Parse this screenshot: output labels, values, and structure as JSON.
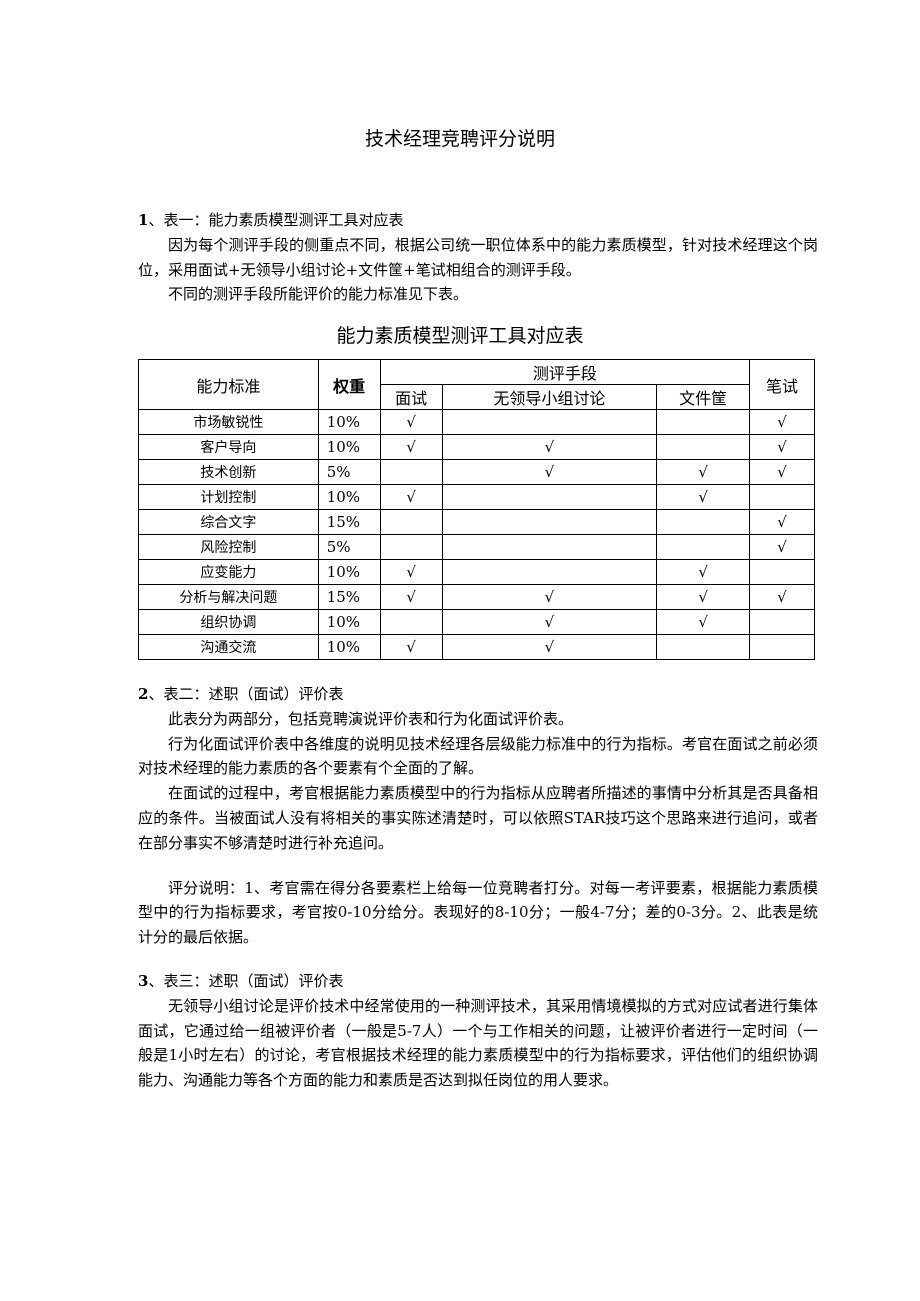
{
  "title": "技术经理竞聘评分说明",
  "s1": {
    "heading_num": "1",
    "heading": "、表一：能力素质模型测评工具对应表",
    "paras": [
      "因为每个测评手段的侧重点不同，根据公司统一职位体系中的能力素质模型，针对技术经理这个岗位，采用面试+无领导小组讨论+文件筐+笔试相组合的测评手段。",
      "不同的测评手段所能评价的能力标准见下表。"
    ]
  },
  "table": {
    "title": "能力素质模型测评工具对应表",
    "headers": {
      "ability": "能力标准",
      "weight": "权重",
      "methods": "测评手段",
      "interview": "面试",
      "group": "无领导小组讨论",
      "inbasket": "文件筐",
      "written": "笔试"
    },
    "check": "√",
    "rows": [
      {
        "ability": "市场敏锐性",
        "weight": "10%",
        "marks": [
          true,
          false,
          false,
          true
        ]
      },
      {
        "ability": "客户导向",
        "weight": "10%",
        "marks": [
          true,
          true,
          false,
          true
        ]
      },
      {
        "ability": "技术创新",
        "weight": "5%",
        "marks": [
          false,
          true,
          true,
          true
        ]
      },
      {
        "ability": "计划控制",
        "weight": "10%",
        "marks": [
          true,
          false,
          true,
          false
        ]
      },
      {
        "ability": "综合文字",
        "weight": "15%",
        "marks": [
          false,
          false,
          false,
          true
        ]
      },
      {
        "ability": "风险控制",
        "weight": "5%",
        "marks": [
          false,
          false,
          false,
          true
        ]
      },
      {
        "ability": "应变能力",
        "weight": "10%",
        "marks": [
          true,
          false,
          true,
          false
        ]
      },
      {
        "ability": "分析与解决问题",
        "weight": "15%",
        "marks": [
          true,
          true,
          true,
          true
        ]
      },
      {
        "ability": "组织协调",
        "weight": "10%",
        "marks": [
          false,
          true,
          true,
          false
        ]
      },
      {
        "ability": "沟通交流",
        "weight": "10%",
        "marks": [
          true,
          true,
          false,
          false
        ]
      }
    ]
  },
  "s2": {
    "heading_num": "2",
    "heading": "、表二：述职（面试）评价表",
    "paras": [
      "此表分为两部分，包括竞聘演说评价表和行为化面试评价表。",
      "行为化面试评价表中各维度的说明见技术经理各层级能力标准中的行为指标。考官在面试之前必须对技术经理的能力素质的各个要素有个全面的了解。",
      "在面试的过程中，考官根据能力素质模型中的行为指标从应聘者所描述的事情中分析其是否具备相应的条件。当被面试人没有将相关的事实陈述清楚时，可以依照STAR技巧这个思路来进行追问，或者在部分事实不够清楚时进行补充追问。"
    ],
    "note": "评分说明：1、考官需在得分各要素栏上给每一位竞聘者打分。对每一考评要素，根据能力素质模型中的行为指标要求，考官按0-10分给分。表现好的8-10分；一般4-7分；差的0-3分。2、此表是统计分的最后依据。"
  },
  "s3": {
    "heading_num": "3",
    "heading": "、表三：述职（面试）评价表",
    "paras": [
      "无领导小组讨论是评价技术中经常使用的一种测评技术，其采用情境模拟的方式对应试者进行集体面试，它通过给一组被评价者（一般是5-7人）一个与工作相关的问题，让被评价者进行一定时间（一般是1小时左右）的讨论，考官根据技术经理的能力素质模型中的行为指标要求，评估他们的组织协调能力、沟通能力等各个方面的能力和素质是否达到拟任岗位的用人要求。"
    ]
  }
}
